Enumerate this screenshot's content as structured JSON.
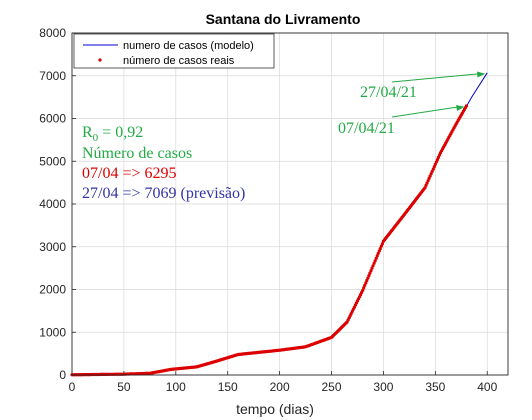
{
  "chart_data": {
    "type": "line",
    "title": "Santana do Livramento",
    "xlabel": "tempo (dias)",
    "ylabel": "",
    "xlim": [
      0,
      420
    ],
    "ylim": [
      0,
      8000
    ],
    "xticks": [
      "0",
      "50",
      "100",
      "150",
      "200",
      "250",
      "300",
      "350",
      "400"
    ],
    "yticks": [
      "0",
      "1000",
      "2000",
      "3000",
      "4000",
      "5000",
      "6000",
      "7000",
      "8000"
    ],
    "grid": true,
    "legend_position": "top-left",
    "series": [
      {
        "name": "numero de casos (modelo)",
        "style": "line",
        "color": "#0000cc",
        "x": [
          0,
          50,
          75,
          95,
          120,
          140,
          160,
          200,
          225,
          250,
          265,
          280,
          300,
          320,
          340,
          355,
          370,
          385,
          400
        ],
        "y": [
          5,
          20,
          40,
          130,
          190,
          330,
          480,
          580,
          660,
          880,
          1240,
          1980,
          3130,
          3750,
          4380,
          5200,
          5870,
          6500,
          7069
        ]
      },
      {
        "name": "número de casos reais",
        "style": "points",
        "color": "#dd0000",
        "x": [
          0,
          50,
          75,
          95,
          120,
          140,
          160,
          200,
          225,
          250,
          265,
          280,
          300,
          320,
          340,
          355,
          370,
          380
        ],
        "y": [
          5,
          20,
          40,
          130,
          190,
          330,
          480,
          580,
          660,
          880,
          1240,
          1980,
          3130,
          3750,
          4380,
          5200,
          5870,
          6295
        ]
      }
    ],
    "annotations": [
      {
        "text": "27/04/21",
        "color": "#22aa44",
        "arrow_to": {
          "x": 400,
          "y": 7069
        }
      },
      {
        "text": "07/04/21",
        "color": "#22aa44",
        "arrow_to": {
          "x": 380,
          "y": 6295
        }
      },
      {
        "text_parts": [
          "R",
          "0",
          " = 0,92"
        ],
        "color": "#22aa44"
      },
      {
        "text": "Número de casos",
        "color": "#22aa44"
      },
      {
        "text": "07/04 => 6295",
        "color": "#dd0000"
      },
      {
        "text": "27/04 => 7069 (previsão)",
        "color": "#3333aa"
      }
    ]
  }
}
